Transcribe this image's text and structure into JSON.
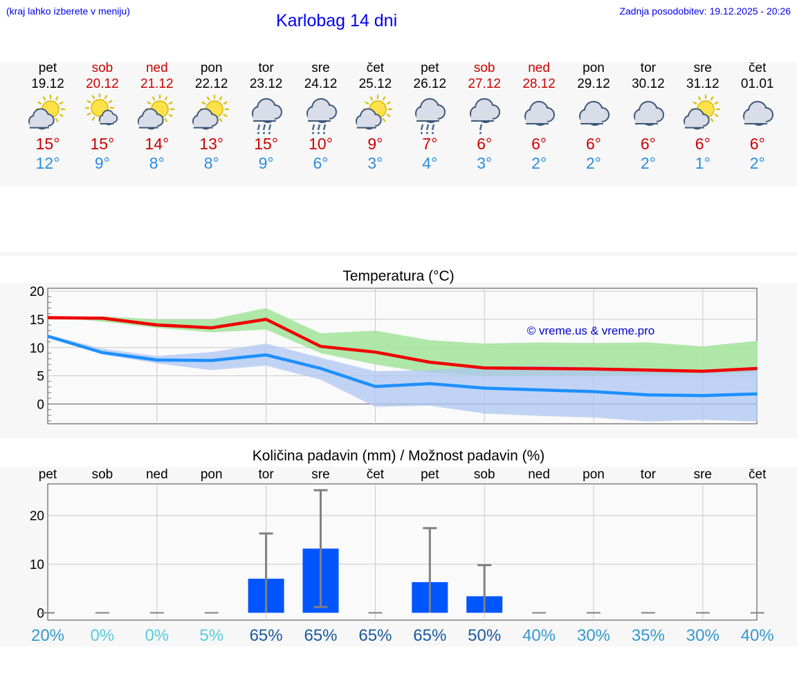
{
  "header": {
    "hint": "(kraj lahko izberete v meniju)",
    "title": "Karlobag 14 dni",
    "updated": "Zadnja posodobitev: 19.12.2025 - 20:26"
  },
  "days": [
    {
      "name": "pet",
      "date": "19.12",
      "weekend": false,
      "icon": "sun-cloud-icon",
      "tmax": "15°",
      "tmin": "12°"
    },
    {
      "name": "sob",
      "date": "20.12",
      "weekend": true,
      "icon": "sun-small-cloud-icon",
      "tmax": "15°",
      "tmin": "9°"
    },
    {
      "name": "ned",
      "date": "21.12",
      "weekend": true,
      "icon": "sun-cloud-icon",
      "tmax": "14°",
      "tmin": "8°"
    },
    {
      "name": "pon",
      "date": "22.12",
      "weekend": false,
      "icon": "sun-cloud-icon",
      "tmax": "13°",
      "tmin": "8°"
    },
    {
      "name": "tor",
      "date": "23.12",
      "weekend": false,
      "icon": "cloud-rain-icon",
      "tmax": "15°",
      "tmin": "9°"
    },
    {
      "name": "sre",
      "date": "24.12",
      "weekend": false,
      "icon": "cloud-rain-icon",
      "tmax": "10°",
      "tmin": "6°"
    },
    {
      "name": "čet",
      "date": "25.12",
      "weekend": false,
      "icon": "sun-cloud-icon",
      "tmax": "9°",
      "tmin": "3°"
    },
    {
      "name": "pet",
      "date": "26.12",
      "weekend": false,
      "icon": "cloud-rain-icon",
      "tmax": "7°",
      "tmin": "4°"
    },
    {
      "name": "sob",
      "date": "27.12",
      "weekend": true,
      "icon": "cloud-light-rain-icon",
      "tmax": "6°",
      "tmin": "3°"
    },
    {
      "name": "ned",
      "date": "28.12",
      "weekend": true,
      "icon": "cloud-icon",
      "tmax": "6°",
      "tmin": "2°"
    },
    {
      "name": "pon",
      "date": "29.12",
      "weekend": false,
      "icon": "cloud-icon",
      "tmax": "6°",
      "tmin": "2°"
    },
    {
      "name": "tor",
      "date": "30.12",
      "weekend": false,
      "icon": "cloud-icon",
      "tmax": "6°",
      "tmin": "2°"
    },
    {
      "name": "sre",
      "date": "31.12",
      "weekend": false,
      "icon": "sun-cloud-icon",
      "tmax": "6°",
      "tmin": "1°"
    },
    {
      "name": "čet",
      "date": "01.01",
      "weekend": false,
      "icon": "cloud-icon",
      "tmax": "6°",
      "tmin": "2°"
    }
  ],
  "colors": {
    "tmax": "#cc0000",
    "tmin": "#2a8de0",
    "maxLine": "#ee0000",
    "maxBand": "#a6e4a0",
    "minLine": "#1e90ff",
    "minBand": "#aec6f2",
    "bar": "#0055ff",
    "err": "#808080"
  },
  "chart_data": [
    {
      "type": "line",
      "title": "Temperatura (°C)",
      "watermark": "© vreme.us & vreme.pro",
      "ylim": [
        -3.5,
        20.5
      ],
      "yticks": [
        0,
        5,
        10,
        15,
        20
      ],
      "x": [
        0,
        1,
        2,
        3,
        4,
        5,
        6,
        7,
        8,
        9,
        10,
        11,
        12,
        13
      ],
      "series": [
        {
          "name": "max",
          "values": [
            15.3,
            15.2,
            14.0,
            13.5,
            15.0,
            10.2,
            9.2,
            7.4,
            6.4,
            6.3,
            6.2,
            6.0,
            5.8,
            6.3
          ],
          "band_low": [
            15.5,
            14.6,
            13.5,
            12.7,
            13.2,
            9.0,
            7.0,
            5.5,
            5.0,
            5.0,
            5.0,
            5.2,
            5.3,
            5.5
          ],
          "band_high": [
            15.4,
            15.5,
            15.0,
            15.0,
            17.0,
            12.5,
            13.0,
            11.3,
            10.7,
            10.9,
            10.8,
            10.9,
            10.2,
            11.2
          ]
        },
        {
          "name": "min",
          "values": [
            12.0,
            9.1,
            7.8,
            7.7,
            8.7,
            6.3,
            3.1,
            3.6,
            2.8,
            2.5,
            2.2,
            1.6,
            1.5,
            1.8
          ],
          "band_low": [
            12.0,
            8.8,
            7.2,
            6.0,
            6.8,
            4.3,
            -0.5,
            -0.3,
            -1.7,
            -2.1,
            -2.4,
            -3.1,
            -2.8,
            -3.1
          ],
          "band_high": [
            12.3,
            9.8,
            8.5,
            9.2,
            10.7,
            8.2,
            5.8,
            6.0,
            6.6,
            6.8,
            6.5,
            6.3,
            6.0,
            6.3
          ]
        }
      ]
    },
    {
      "type": "bar",
      "title": "Količina padavin (mm) / Možnost padavin (%)",
      "categories": [
        "pet",
        "sob",
        "ned",
        "pon",
        "tor",
        "sre",
        "čet",
        "pet",
        "sob",
        "ned",
        "pon",
        "tor",
        "sre",
        "čet"
      ],
      "ylim": [
        -1.5,
        26.5
      ],
      "yticks": [
        0,
        10,
        20
      ],
      "values": [
        0,
        0,
        0,
        0,
        7,
        13.2,
        0,
        6.3,
        3.4,
        0,
        0,
        0,
        0,
        0
      ],
      "err_low": [
        0,
        0,
        0,
        0,
        0,
        1.2,
        0,
        0,
        0,
        0,
        0,
        0,
        0,
        0
      ],
      "err_high": [
        0,
        0,
        0,
        0,
        16.3,
        25.2,
        0,
        17.4,
        9.8,
        0,
        0,
        0,
        0,
        0
      ],
      "probability": [
        "20%",
        "0%",
        "0%",
        "5%",
        "65%",
        "65%",
        "65%",
        "65%",
        "50%",
        "40%",
        "30%",
        "35%",
        "30%",
        "40%"
      ],
      "probability_colors": [
        "#3399cc",
        "#55ccdd",
        "#55ccdd",
        "#55ccdd",
        "#1a5aa0",
        "#1a5aa0",
        "#1a5aa0",
        "#1a5aa0",
        "#1a5aa0",
        "#3399cc",
        "#3399cc",
        "#3399cc",
        "#3399cc",
        "#3399cc"
      ]
    }
  ]
}
